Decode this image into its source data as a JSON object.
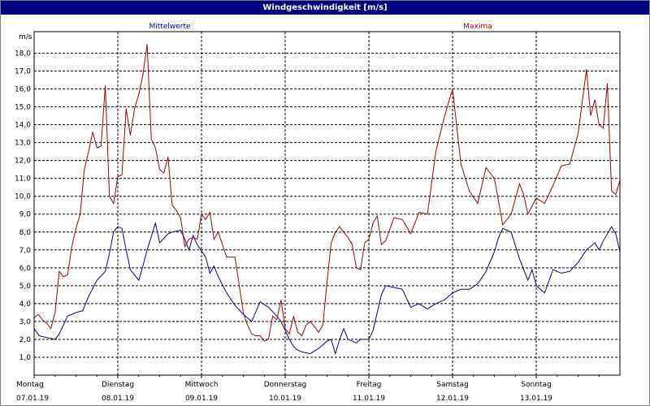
{
  "window": {
    "title": "Windgeschwindigkeit [m/s]"
  },
  "colors": {
    "background": "#ffffff",
    "titlebar": "#000080",
    "grid": "#000000",
    "mean_series": "#0000aa",
    "max_series": "#aa0000"
  },
  "chart_data": {
    "type": "line",
    "title": "Windgeschwindigkeit [m/s]",
    "ylabel": "m/s",
    "ylim": [
      0,
      19.2
    ],
    "xlim": [
      0,
      7
    ],
    "yticks": [
      "1,0",
      "2,0",
      "3,0",
      "4,0",
      "5,0",
      "6,0",
      "7,0",
      "8,0",
      "9,0",
      "10,0",
      "11,0",
      "12,0",
      "13,0",
      "14,0",
      "15,0",
      "16,0",
      "17,0",
      "18,0"
    ],
    "x_days": [
      "Montag",
      "Dienstag",
      "Mittwoch",
      "Donnerstag",
      "Freitag",
      "Samstag",
      "Sonntag"
    ],
    "x_dates": [
      "07.01.19",
      "08.01.19",
      "09.01.19",
      "10.01.19",
      "11.01.19",
      "12.01.19",
      "13.01.19"
    ],
    "grid": true,
    "legend": "top",
    "series": [
      {
        "name": "Mittelwerte",
        "color": "#0000aa",
        "x": [
          0,
          0.06,
          0.15,
          0.25,
          0.3,
          0.4,
          0.5,
          0.58,
          0.65,
          0.75,
          0.85,
          0.9,
          0.95,
          1.0,
          1.05,
          1.1,
          1.15,
          1.25,
          1.3,
          1.35,
          1.45,
          1.5,
          1.6,
          1.65,
          1.75,
          1.8,
          1.85,
          1.9,
          1.95,
          2.05,
          2.1,
          2.15,
          2.2,
          2.3,
          2.4,
          2.5,
          2.6,
          2.7,
          2.8,
          2.9,
          2.95,
          3.0,
          3.05,
          3.1,
          3.15,
          3.2,
          3.3,
          3.4,
          3.5,
          3.55,
          3.6,
          3.65,
          3.7,
          3.75,
          3.85,
          3.9,
          4.0,
          4.05,
          4.1,
          4.15,
          4.2,
          4.3,
          4.4,
          4.5,
          4.6,
          4.7,
          4.8,
          4.9,
          5.0,
          5.1,
          5.2,
          5.3,
          5.4,
          5.5,
          5.55,
          5.6,
          5.7,
          5.8,
          5.9,
          5.95,
          6.0,
          6.1,
          6.2,
          6.3,
          6.4,
          6.5,
          6.6,
          6.7,
          6.75,
          6.8,
          6.9,
          6.95,
          7.0
        ],
        "values": [
          2.6,
          2.2,
          2.1,
          2.0,
          2.3,
          3.3,
          3.5,
          3.6,
          4.4,
          5.3,
          5.8,
          6.8,
          8.0,
          8.3,
          8.2,
          7.0,
          5.9,
          5.3,
          6.1,
          7.0,
          8.5,
          7.4,
          7.9,
          8.0,
          8.1,
          7.6,
          7.0,
          7.8,
          7.3,
          6.6,
          5.7,
          6.1,
          5.5,
          4.6,
          3.9,
          3.4,
          3.0,
          4.1,
          3.8,
          3.3,
          3.0,
          2.5,
          2.0,
          1.6,
          1.4,
          1.3,
          1.2,
          1.5,
          1.9,
          2.0,
          1.2,
          2.0,
          2.6,
          2.0,
          1.8,
          2.0,
          2.0,
          2.5,
          3.5,
          4.5,
          5.0,
          4.9,
          4.8,
          3.8,
          4.0,
          3.7,
          4.0,
          4.2,
          4.6,
          4.8,
          4.8,
          5.1,
          5.8,
          6.9,
          7.7,
          8.2,
          8.0,
          6.5,
          5.3,
          5.9,
          5.0,
          4.6,
          5.9,
          5.7,
          5.8,
          6.3,
          7.0,
          7.4,
          7.0,
          7.5,
          8.3,
          7.9,
          6.9
        ],
        "end_values": [
          6.0,
          5.8
        ]
      },
      {
        "name": "Maxima",
        "color": "#aa0000",
        "x": [
          0,
          0.05,
          0.1,
          0.15,
          0.2,
          0.25,
          0.3,
          0.35,
          0.4,
          0.45,
          0.5,
          0.55,
          0.6,
          0.65,
          0.7,
          0.75,
          0.8,
          0.85,
          0.9,
          0.95,
          1.0,
          1.05,
          1.1,
          1.15,
          1.2,
          1.25,
          1.3,
          1.35,
          1.4,
          1.45,
          1.5,
          1.55,
          1.6,
          1.65,
          1.7,
          1.75,
          1.8,
          1.85,
          1.9,
          1.95,
          2.0,
          2.05,
          2.1,
          2.15,
          2.2,
          2.3,
          2.4,
          2.5,
          2.55,
          2.6,
          2.65,
          2.7,
          2.75,
          2.8,
          2.85,
          2.9,
          2.95,
          3.0,
          3.05,
          3.1,
          3.15,
          3.2,
          3.25,
          3.3,
          3.35,
          3.4,
          3.45,
          3.5,
          3.55,
          3.6,
          3.65,
          3.7,
          3.75,
          3.8,
          3.85,
          3.9,
          3.95,
          4.0,
          4.05,
          4.1,
          4.15,
          4.2,
          4.3,
          4.4,
          4.5,
          4.6,
          4.7,
          4.8,
          4.9,
          5.0,
          5.1,
          5.2,
          5.3,
          5.4,
          5.5,
          5.6,
          5.7,
          5.8,
          5.85,
          5.9,
          6.0,
          6.1,
          6.2,
          6.3,
          6.4,
          6.5,
          6.6,
          6.65,
          6.7,
          6.75,
          6.8,
          6.85,
          6.9,
          6.95,
          7.0
        ],
        "values": [
          3.2,
          3.4,
          3.1,
          2.9,
          2.6,
          3.5,
          5.8,
          5.5,
          5.6,
          7.2,
          8.2,
          9.0,
          11.5,
          12.5,
          13.6,
          12.7,
          12.8,
          16.2,
          10.0,
          9.6,
          11.1,
          11.2,
          14.9,
          13.4,
          14.9,
          15.7,
          16.8,
          18.5,
          13.2,
          12.7,
          11.5,
          11.3,
          12.2,
          9.5,
          9.2,
          8.8,
          7.2,
          7.6,
          7.7,
          7.6,
          9.0,
          8.7,
          9.1,
          7.6,
          8.0,
          6.6,
          6.6,
          3.5,
          2.8,
          2.3,
          2.2,
          2.2,
          1.9,
          2.0,
          3.3,
          3.1,
          4.2,
          2.6,
          2.3,
          3.3,
          2.4,
          2.2,
          2.8,
          3.0,
          2.7,
          2.4,
          2.8,
          5.2,
          7.4,
          8.0,
          8.3,
          8.0,
          7.7,
          7.3,
          6.0,
          5.9,
          7.4,
          7.6,
          8.5,
          8.9,
          7.3,
          7.5,
          8.8,
          8.7,
          7.9,
          9.1,
          9.0,
          12.5,
          14.4,
          16.0,
          11.8,
          10.3,
          9.6,
          11.6,
          11.0,
          8.4,
          9.0,
          10.7,
          10.1,
          9.0,
          9.9,
          9.6,
          10.6,
          11.7,
          11.8,
          13.5,
          17.1,
          14.5,
          15.4,
          14.0,
          13.8,
          16.3,
          10.3,
          10.1,
          10.9
        ],
        "end_values": [
          10.1,
          11.0
        ]
      }
    ]
  }
}
